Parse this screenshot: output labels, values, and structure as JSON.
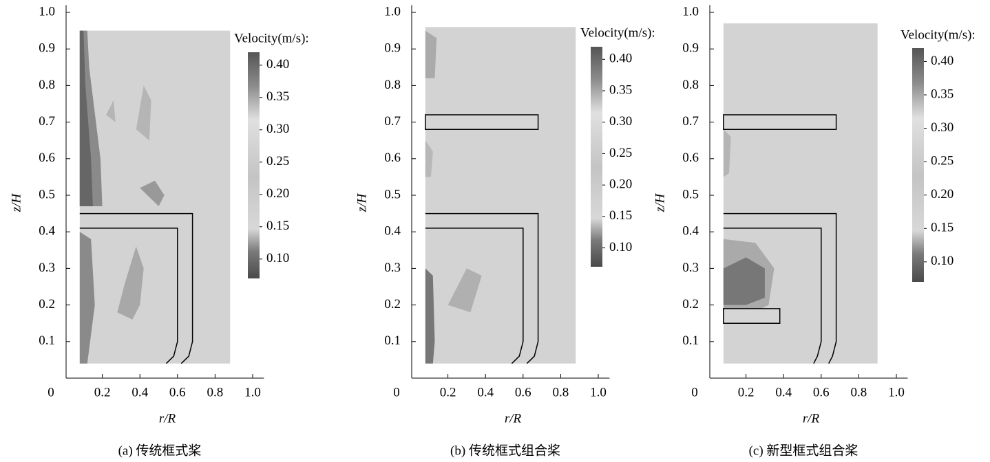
{
  "chart_data": [
    {
      "type": "contour",
      "caption": "(a) 传统框式桨",
      "xlabel": "r/R",
      "ylabel": "z/H",
      "xlim": [
        0,
        1.06
      ],
      "ylim": [
        0,
        1.02
      ],
      "xticks": [
        0,
        0.2,
        0.4,
        0.6,
        0.8,
        {
          "value": 1,
          "label": "1.0"
        }
      ],
      "yticks": [
        0.1,
        0.2,
        0.3,
        0.4,
        0.5,
        0.6,
        0.7,
        0.8,
        0.9,
        {
          "value": 1,
          "label": "1.0"
        }
      ],
      "colorbar": {
        "title": "Velocity(m/s):",
        "lim": [
          0.07,
          0.42
        ],
        "ticks": [
          {
            "value": 0.1,
            "label": "0.10"
          },
          0.15,
          {
            "value": 0.2,
            "label": "0.20"
          },
          0.25,
          {
            "value": 0.3,
            "label": "0.30"
          },
          0.35,
          {
            "value": 0.4,
            "label": "0.40"
          }
        ]
      }
    },
    {
      "type": "contour",
      "caption": "(b) 传统框式组合桨",
      "xlabel": "r/R",
      "ylabel": "z/H",
      "xlim": [
        0,
        1.06
      ],
      "ylim": [
        0,
        1.02
      ],
      "xticks": [
        0,
        0.2,
        0.4,
        0.6,
        0.8,
        {
          "value": 1,
          "label": "1.0"
        }
      ],
      "yticks": [
        0.1,
        0.2,
        0.3,
        0.4,
        0.5,
        0.6,
        0.7,
        0.8,
        0.9,
        {
          "value": 1,
          "label": "1.0"
        }
      ],
      "colorbar": {
        "title": "Velocity(m/s):",
        "lim": [
          0.07,
          0.42
        ],
        "ticks": [
          {
            "value": 0.1,
            "label": "0.10"
          },
          0.15,
          {
            "value": 0.2,
            "label": "0.20"
          },
          0.25,
          {
            "value": 0.3,
            "label": "0.30"
          },
          0.35,
          {
            "value": 0.4,
            "label": "0.40"
          }
        ]
      }
    },
    {
      "type": "contour",
      "caption": "(c) 新型框式组合桨",
      "xlabel": "r/R",
      "ylabel": "z/H",
      "xlim": [
        0,
        1.06
      ],
      "ylim": [
        0,
        1.02
      ],
      "xticks": [
        0,
        0.2,
        0.4,
        0.6,
        0.8,
        {
          "value": 1,
          "label": "1.0"
        }
      ],
      "yticks": [
        0.1,
        0.2,
        0.3,
        0.4,
        0.5,
        0.6,
        0.7,
        0.8,
        0.9,
        {
          "value": 1,
          "label": "1.0"
        }
      ],
      "colorbar": {
        "title": "Velocity(m/s):",
        "lim": [
          0.07,
          0.42
        ],
        "ticks": [
          {
            "value": 0.1,
            "label": "0.10"
          },
          0.15,
          {
            "value": 0.2,
            "label": "0.20"
          },
          0.25,
          {
            "value": 0.3,
            "label": "0.30"
          },
          0.35,
          {
            "value": 0.4,
            "label": "0.40"
          }
        ]
      }
    }
  ]
}
